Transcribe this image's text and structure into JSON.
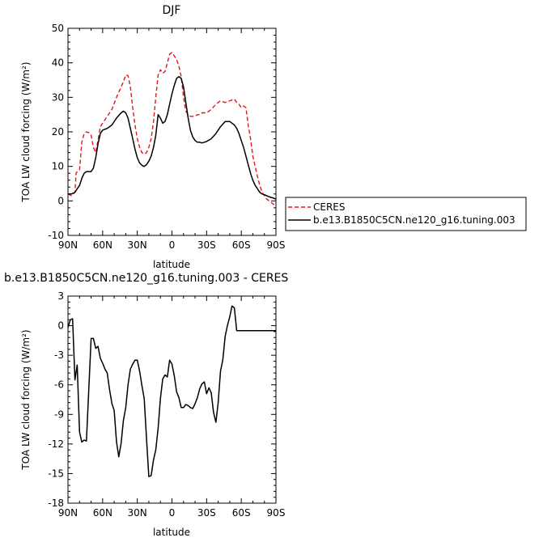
{
  "chart_data": [
    {
      "type": "line",
      "title": "DJF",
      "xlabel": "latitude",
      "ylabel": "TOA LW cloud forcing (W/m²)",
      "xlim": [
        90,
        -90
      ],
      "ylim": [
        -10,
        50
      ],
      "x_ticks": [
        90,
        60,
        30,
        0,
        -30,
        -60,
        -90
      ],
      "x_tick_labels": [
        "90N",
        "60N",
        "30N",
        "0",
        "30S",
        "60S",
        "90S"
      ],
      "y_ticks": [
        -10,
        0,
        10,
        20,
        30,
        40,
        50
      ],
      "y_tick_labels": [
        "-10",
        "0",
        "10",
        "20",
        "30",
        "40",
        "50"
      ],
      "grid": false,
      "legend": "outside-right",
      "series": [
        {
          "name": "CERES",
          "color": "#e8141c",
          "dash": true,
          "x": [
            90,
            87,
            84,
            83,
            82,
            80,
            78,
            76,
            74,
            72,
            70,
            68,
            66,
            64,
            62,
            60,
            56,
            52,
            48,
            44,
            42,
            40,
            38,
            36,
            34,
            32,
            30,
            28,
            26,
            24,
            22,
            20,
            18,
            16,
            14,
            12,
            10,
            8,
            6,
            4,
            2,
            0,
            -2,
            -4,
            -6,
            -8,
            -10,
            -12,
            -14,
            -16,
            -18,
            -20,
            -22,
            -24,
            -26,
            -28,
            -30,
            -34,
            -38,
            -42,
            -46,
            -50,
            -54,
            -56,
            -58,
            -60,
            -62,
            -64,
            -66,
            -68,
            -70,
            -72,
            -74,
            -76,
            -78,
            -80,
            -82,
            -84,
            -86,
            -88,
            -90
          ],
          "values": [
            2.0,
            1.5,
            2.5,
            8.0,
            8.5,
            9.0,
            17.0,
            19.5,
            20.0,
            19.8,
            19.0,
            15.5,
            14.0,
            17.5,
            21.5,
            22.5,
            24.5,
            26.5,
            30.0,
            33.0,
            34.5,
            36.5,
            36.3,
            33.0,
            27.0,
            22.0,
            18.0,
            15.5,
            14.0,
            13.5,
            14.0,
            15.5,
            18.0,
            23.0,
            30.0,
            36.5,
            38.0,
            37.0,
            37.5,
            40.0,
            42.5,
            43.0,
            42.0,
            41.0,
            39.0,
            36.0,
            30.0,
            26.0,
            25.0,
            24.5,
            24.5,
            24.5,
            25.0,
            25.0,
            25.5,
            25.5,
            25.5,
            26.5,
            28.0,
            29.0,
            28.5,
            29.0,
            29.5,
            28.5,
            28.0,
            27.0,
            27.5,
            27.0,
            22.0,
            18.0,
            13.0,
            10.0,
            7.0,
            4.5,
            2.5,
            1.5,
            0.5,
            0.0,
            -0.5,
            -1.0,
            -1.0
          ]
        },
        {
          "name": "b.e13.B1850C5CN.ne120_g16.tuning.003",
          "color": "#000000",
          "dash": false,
          "x": [
            90,
            87,
            84,
            82,
            80,
            78,
            76,
            74,
            72,
            70,
            68,
            66,
            64,
            62,
            60,
            56,
            52,
            48,
            44,
            42,
            40,
            38,
            36,
            34,
            32,
            30,
            28,
            26,
            24,
            22,
            20,
            18,
            16,
            14,
            12,
            10,
            8,
            6,
            4,
            2,
            0,
            -2,
            -4,
            -6,
            -8,
            -10,
            -12,
            -14,
            -16,
            -18,
            -20,
            -22,
            -24,
            -26,
            -28,
            -30,
            -34,
            -38,
            -42,
            -46,
            -50,
            -54,
            -56,
            -58,
            -60,
            -62,
            -64,
            -66,
            -68,
            -70,
            -72,
            -74,
            -76,
            -78,
            -80,
            -82,
            -84,
            -86,
            -88,
            -90
          ],
          "values": [
            2.0,
            2.0,
            2.5,
            3.5,
            4.5,
            6.5,
            8.0,
            8.5,
            8.5,
            8.5,
            9.5,
            12.5,
            16.5,
            19.5,
            20.5,
            21.0,
            22.0,
            24.0,
            25.5,
            26.0,
            25.5,
            24.0,
            21.0,
            18.0,
            15.0,
            12.5,
            11.0,
            10.3,
            10.0,
            10.5,
            11.5,
            13.0,
            15.5,
            19.0,
            25.0,
            24.0,
            22.5,
            23.0,
            25.0,
            28.0,
            31.0,
            33.5,
            35.5,
            36.0,
            35.5,
            33.0,
            28.5,
            24.0,
            20.5,
            18.5,
            17.5,
            17.0,
            17.0,
            16.8,
            17.0,
            17.2,
            18.0,
            19.5,
            21.5,
            23.0,
            23.0,
            22.0,
            21.0,
            19.5,
            17.5,
            15.5,
            13.0,
            10.5,
            8.0,
            6.0,
            4.5,
            3.5,
            2.5,
            2.0,
            1.8,
            1.5,
            1.2,
            1.0,
            0.8,
            0.5
          ]
        }
      ]
    },
    {
      "type": "line",
      "title": "b.e13.B1850C5CN.ne120_g16.tuning.003 - CERES",
      "xlabel": "latitude",
      "ylabel": "TOA LW cloud forcing (W/m²)",
      "xlim": [
        90,
        -90
      ],
      "ylim": [
        -18,
        3
      ],
      "x_ticks": [
        90,
        60,
        30,
        0,
        -30,
        -60,
        -90
      ],
      "x_tick_labels": [
        "90N",
        "60N",
        "30N",
        "0",
        "30S",
        "60S",
        "90S"
      ],
      "y_ticks": [
        -18,
        -15,
        -12,
        -9,
        -6,
        -3,
        0,
        3
      ],
      "y_tick_labels": [
        "-18",
        "-15",
        "-12",
        "-9",
        "-6",
        "-3",
        "0",
        "3"
      ],
      "grid": false,
      "series": [
        {
          "color": "#000000",
          "x": [
            90,
            88,
            86,
            84,
            82,
            80,
            78,
            76,
            74,
            72,
            70,
            68,
            66,
            64,
            62,
            60,
            58,
            56,
            54,
            52,
            50,
            48,
            46,
            44,
            42,
            40,
            38,
            36,
            34,
            32,
            30,
            28,
            26,
            24,
            22,
            20,
            18,
            16,
            14,
            12,
            10,
            8,
            6,
            4,
            2,
            0,
            -2,
            -4,
            -6,
            -8,
            -10,
            -12,
            -14,
            -16,
            -18,
            -20,
            -22,
            -24,
            -26,
            -28,
            -30,
            -32,
            -34,
            -36,
            -38,
            -40,
            -42,
            -44,
            -46,
            -48,
            -50,
            -52,
            -54,
            -56,
            -58,
            -60,
            -62,
            -64,
            -66,
            -68,
            -70,
            -72,
            -74,
            -76,
            -78,
            -80,
            -82,
            -84,
            -86,
            -88,
            -90
          ],
          "values": [
            -0.2,
            0.6,
            0.7,
            -5.5,
            -4.0,
            -10.8,
            -11.8,
            -11.6,
            -11.7,
            -6.5,
            -1.3,
            -1.3,
            -2.3,
            -2.1,
            -3.3,
            -3.8,
            -4.4,
            -4.8,
            -6.5,
            -7.9,
            -8.6,
            -11.8,
            -13.3,
            -11.9,
            -9.6,
            -8.3,
            -6.0,
            -4.4,
            -3.9,
            -3.5,
            -3.5,
            -4.6,
            -6.1,
            -7.4,
            -11.5,
            -15.3,
            -15.2,
            -13.6,
            -12.6,
            -10.4,
            -7.4,
            -5.4,
            -5.0,
            -5.2,
            -3.5,
            -3.9,
            -5.1,
            -6.7,
            -7.3,
            -8.3,
            -8.3,
            -8.0,
            -8.1,
            -8.3,
            -8.4,
            -7.9,
            -7.3,
            -6.4,
            -5.9,
            -5.7,
            -6.9,
            -6.3,
            -6.8,
            -8.8,
            -9.8,
            -7.8,
            -4.6,
            -3.5,
            -1.1,
            0.0,
            0.9,
            2.0,
            1.8,
            -0.5,
            -0.5,
            -0.5,
            -0.5,
            -0.5,
            -0.5,
            -0.5,
            -0.5,
            -0.5,
            -0.5,
            -0.5,
            -0.5,
            -0.5,
            -0.5,
            -0.5,
            -0.5,
            -0.5,
            -0.5
          ]
        }
      ]
    }
  ]
}
